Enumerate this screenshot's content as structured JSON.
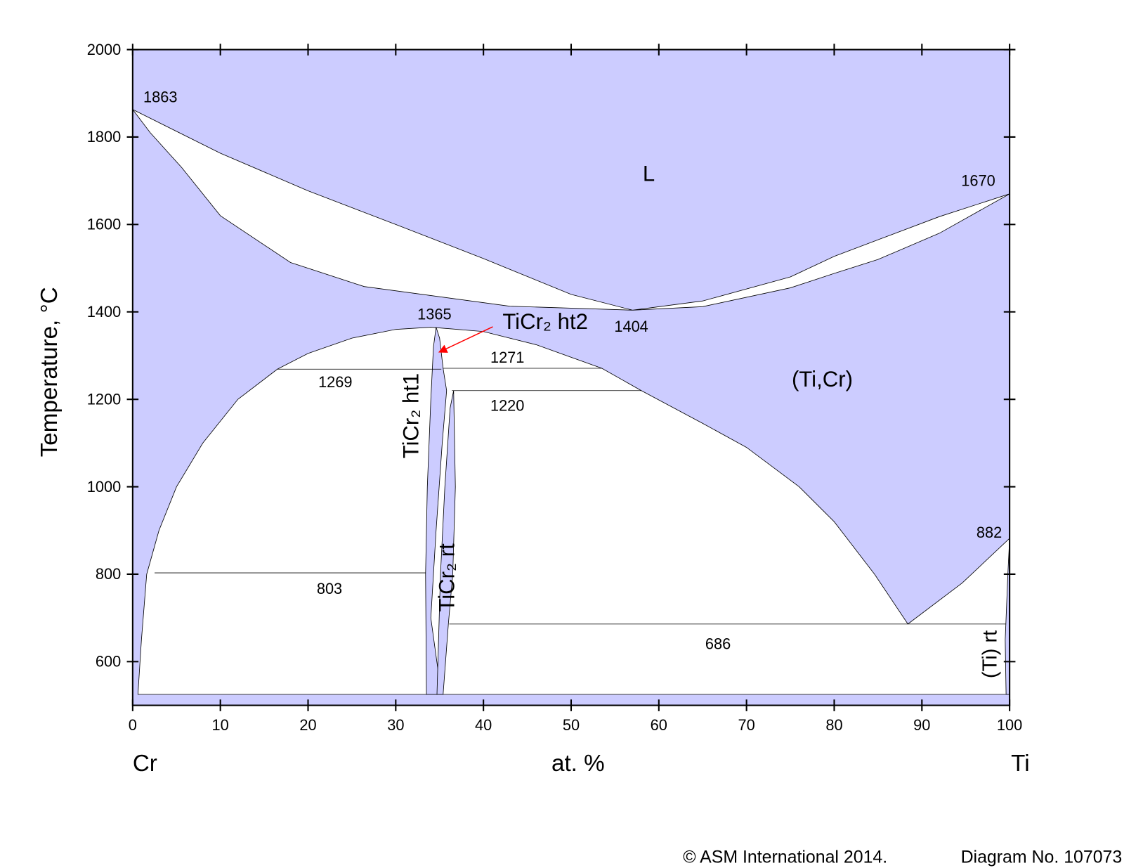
{
  "chart_data": {
    "type": "phase-diagram",
    "ylabel": "Temperature, °C",
    "xlabel": "at. %",
    "components": [
      "Cr",
      "Ti"
    ],
    "xlim": [
      0,
      100
    ],
    "xticks": [
      0,
      10,
      20,
      30,
      40,
      50,
      60,
      70,
      80,
      90,
      100
    ],
    "ylim": [
      500,
      2000
    ],
    "yticks": [
      600,
      800,
      1000,
      1200,
      1400,
      1600,
      1800,
      2000
    ],
    "single_phase_color": "#ccccff",
    "regions": [
      {
        "color": "#ffffff",
        "x": [
          0,
          10,
          20,
          30,
          40,
          50,
          57,
          43,
          26.4,
          18,
          10,
          5.6,
          2
        ],
        "y": [
          1863,
          1763,
          1677,
          1600,
          1522,
          1440,
          1404,
          1413,
          1458,
          1513,
          1620,
          1730,
          1810
        ]
      },
      {
        "color": "#ffffff",
        "x": [
          57,
          65,
          75,
          80,
          85,
          92,
          100,
          92,
          85,
          80,
          75,
          65
        ],
        "y": [
          1404,
          1425,
          1480,
          1527,
          1565,
          1618,
          1670,
          1580,
          1520,
          1488,
          1455,
          1412
        ]
      },
      {
        "color": "#ffffff",
        "x": [
          0.6,
          1,
          1.6,
          3,
          5,
          8,
          12,
          16.5,
          20,
          25,
          30,
          34,
          40,
          46,
          53.5,
          58,
          65,
          70,
          76,
          80,
          84.6,
          88.4,
          94.6,
          100,
          100
        ],
        "y": [
          525,
          650,
          800,
          900,
          1000,
          1100,
          1200,
          1269,
          1305,
          1340,
          1360,
          1365,
          1355,
          1325,
          1271,
          1220,
          1145,
          1090,
          1000,
          920,
          800,
          686,
          780,
          882,
          525
        ]
      },
      {
        "color": "#ccccff",
        "x": [
          33.5,
          33.4,
          33.6,
          34,
          34.3,
          34.6,
          35,
          35.4,
          35.8,
          35.3,
          34.6,
          34,
          35.2
        ],
        "y": [
          525,
          800,
          1000,
          1200,
          1320,
          1365,
          1340,
          1271,
          1220,
          1100,
          900,
          700,
          525
        ]
      },
      {
        "color": "#ccccff",
        "x": [
          34.7,
          35.1,
          35.6,
          36.2,
          36.6,
          36.8,
          36.5,
          36,
          35.4
        ],
        "y": [
          525,
          800,
          1000,
          1180,
          1220,
          1000,
          800,
          686,
          525
        ]
      },
      {
        "color": "#ccccff",
        "x": [
          99.6,
          99.5,
          99.8,
          100,
          100
        ],
        "y": [
          525,
          650,
          800,
          882,
          525
        ]
      }
    ],
    "invariants": [
      {
        "temperature": 1269,
        "x": [
          16.5,
          35.2
        ]
      },
      {
        "temperature": 1271,
        "x": [
          35.4,
          53.5
        ]
      },
      {
        "temperature": 1220,
        "x": [
          36.4,
          58
        ]
      },
      {
        "temperature": 803,
        "x": [
          2.5,
          33.4
        ]
      },
      {
        "temperature": 686,
        "x": [
          36.1,
          99.6
        ]
      }
    ],
    "special_points": [
      {
        "x": 0,
        "temperature": 1863
      },
      {
        "x": 100,
        "temperature": 1670
      },
      {
        "x": 57,
        "temperature": 1404
      },
      {
        "x": 34.6,
        "temperature": 1365
      },
      {
        "x": 100,
        "temperature": 882
      }
    ],
    "phase_labels": [
      "L",
      "(Ti,Cr)",
      "TiCr₂ ht1",
      "TiCr₂ ht2",
      "TiCr₂ rt",
      "(Ti) rt"
    ],
    "footer": [
      "© ASM International 2014.",
      "Diagram No. 107073"
    ]
  }
}
